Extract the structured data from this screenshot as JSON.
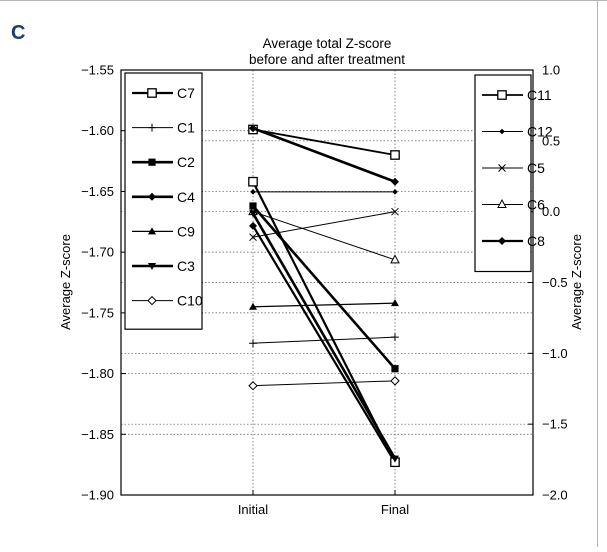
{
  "panel_letter": "C",
  "chart_data": {
    "type": "line",
    "title_lines": [
      "Average total Z-score",
      "before and after treatment"
    ],
    "categories": [
      "Initial",
      "Final"
    ],
    "ylabel_left": "Average Z-score",
    "ylabel_right": "Average Z-score",
    "ylim_left": [
      -1.9,
      -1.55
    ],
    "ylim_right": [
      -2.0,
      1.0
    ],
    "yticks_left": [
      -1.55,
      -1.6,
      -1.65,
      -1.7,
      -1.75,
      -1.8,
      -1.85,
      -1.9
    ],
    "yticks_left_labels": [
      "−1.55",
      "−1.60",
      "−1.65",
      "−1.70",
      "−1.75",
      "−1.80",
      "−1.85",
      "−1.90"
    ],
    "yticks_right": [
      1.0,
      0.5,
      0.0,
      -0.5,
      -1.0,
      -1.5,
      -2.0
    ],
    "yticks_right_labels": [
      "1.0",
      "0.5",
      "0.0",
      "−0.5",
      "−1.0",
      "−1.5",
      "−2.0"
    ],
    "grid": true,
    "grid_style": "dotted",
    "legend_left_placement": "upper-left",
    "legend_right_placement": "upper-right",
    "series_left": [
      {
        "name": "C7",
        "values": [
          -1.642,
          -1.873
        ],
        "marker": "square-open",
        "width": 2.2
      },
      {
        "name": "C1",
        "values": [
          -1.775,
          -1.77
        ],
        "marker": "plus",
        "width": 1.0
      },
      {
        "name": "C2",
        "values": [
          -1.662,
          -1.796
        ],
        "marker": "square-filled",
        "width": 2.6
      },
      {
        "name": "C4",
        "values": [
          -1.598,
          -1.642
        ],
        "marker": "diamond",
        "width": 2.6
      },
      {
        "name": "C9",
        "values": [
          -1.745,
          -1.742
        ],
        "marker": "triangle",
        "width": 1.2
      },
      {
        "name": "C3",
        "values": [
          -1.668,
          -1.87
        ],
        "marker": "triangle-down",
        "width": 2.6
      },
      {
        "name": "C10",
        "values": [
          -1.81,
          -1.806
        ],
        "marker": "diamond-open",
        "width": 1.0
      }
    ],
    "series_right": [
      {
        "name": "C11",
        "values": [
          0.58,
          0.4
        ],
        "marker": "square-open",
        "width": 1.8
      },
      {
        "name": "C12",
        "values": [
          0.14,
          0.14
        ],
        "marker": "diamond-small",
        "width": 1.0
      },
      {
        "name": "C5",
        "values": [
          -0.18,
          0.0
        ],
        "marker": "x",
        "width": 1.0
      },
      {
        "name": "C6",
        "values": [
          0.0,
          -0.34
        ],
        "marker": "triangle-open",
        "width": 1.0
      },
      {
        "name": "C8",
        "values": [
          -0.1,
          -1.77
        ],
        "marker": "diamond",
        "width": 2.2
      }
    ]
  }
}
